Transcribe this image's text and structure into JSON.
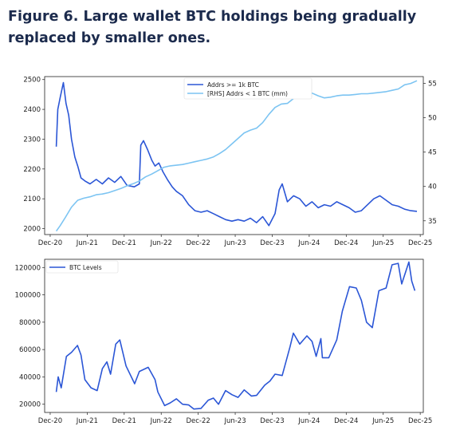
{
  "figure_title": "Figure 6. Large wallet BTC holdings being gradually\nreplaced by smaller ones.",
  "colors": {
    "dark_series": "#2b56d6",
    "light_series": "#7cc4f2",
    "title": "#1c2b4d"
  },
  "chart_data": [
    {
      "type": "line",
      "title": "",
      "x_ticks": [
        "Dec-20",
        "Jun-21",
        "Dec-21",
        "Jun-22",
        "Dec-22",
        "Jun-23",
        "Dec-23",
        "Jun-24",
        "Dec-24",
        "Jun-25",
        "Dec-25"
      ],
      "xlim": [
        "2020-12",
        "2025-12"
      ],
      "ylim": [
        1980,
        2510
      ],
      "y_ticks": [
        2000,
        2100,
        2200,
        2300,
        2400,
        2500
      ],
      "y2lim": [
        33,
        56
      ],
      "y2_ticks": [
        35,
        40,
        45,
        50,
        55
      ],
      "legend_position": "top-center",
      "grid": false,
      "series": [
        {
          "name": "Addrs >= 1k BTC",
          "axis": "left",
          "points": [
            [
              "2020-12-31",
              2275
            ],
            [
              "2021-01-08",
              2400
            ],
            [
              "2021-01-20",
              2440
            ],
            [
              "2021-02-05",
              2490
            ],
            [
              "2021-02-18",
              2420
            ],
            [
              "2021-03-01",
              2380
            ],
            [
              "2021-03-15",
              2300
            ],
            [
              "2021-04-01",
              2240
            ],
            [
              "2021-04-15",
              2210
            ],
            [
              "2021-05-01",
              2170
            ],
            [
              "2021-05-20",
              2160
            ],
            [
              "2021-06-15",
              2150
            ],
            [
              "2021-07-15",
              2165
            ],
            [
              "2021-08-15",
              2150
            ],
            [
              "2021-09-15",
              2170
            ],
            [
              "2021-10-15",
              2155
            ],
            [
              "2021-11-15",
              2175
            ],
            [
              "2021-12-15",
              2145
            ],
            [
              "2022-01-20",
              2140
            ],
            [
              "2022-02-15",
              2150
            ],
            [
              "2022-02-22",
              2280
            ],
            [
              "2022-03-05",
              2295
            ],
            [
              "2022-03-25",
              2265
            ],
            [
              "2022-04-15",
              2230
            ],
            [
              "2022-05-01",
              2210
            ],
            [
              "2022-05-20",
              2220
            ],
            [
              "2022-06-10",
              2190
            ],
            [
              "2022-07-01",
              2165
            ],
            [
              "2022-07-25",
              2140
            ],
            [
              "2022-08-15",
              2125
            ],
            [
              "2022-09-15",
              2110
            ],
            [
              "2022-10-15",
              2080
            ],
            [
              "2022-11-15",
              2060
            ],
            [
              "2022-12-15",
              2055
            ],
            [
              "2023-01-15",
              2060
            ],
            [
              "2023-02-15",
              2050
            ],
            [
              "2023-03-15",
              2040
            ],
            [
              "2023-04-15",
              2030
            ],
            [
              "2023-05-15",
              2025
            ],
            [
              "2023-06-15",
              2030
            ],
            [
              "2023-07-15",
              2025
            ],
            [
              "2023-08-15",
              2035
            ],
            [
              "2023-09-15",
              2020
            ],
            [
              "2023-10-15",
              2040
            ],
            [
              "2023-11-15",
              2010
            ],
            [
              "2023-12-15",
              2050
            ],
            [
              "2024-01-05",
              2130
            ],
            [
              "2024-01-20",
              2150
            ],
            [
              "2024-02-15",
              2090
            ],
            [
              "2024-03-15",
              2110
            ],
            [
              "2024-04-15",
              2100
            ],
            [
              "2024-05-15",
              2075
            ],
            [
              "2024-06-15",
              2090
            ],
            [
              "2024-07-15",
              2070
            ],
            [
              "2024-08-15",
              2080
            ],
            [
              "2024-09-15",
              2075
            ],
            [
              "2024-10-15",
              2090
            ],
            [
              "2024-11-15",
              2080
            ],
            [
              "2024-12-15",
              2070
            ],
            [
              "2025-01-15",
              2055
            ],
            [
              "2025-02-15",
              2060
            ],
            [
              "2025-03-15",
              2080
            ],
            [
              "2025-04-15",
              2100
            ],
            [
              "2025-05-15",
              2110
            ],
            [
              "2025-06-15",
              2095
            ],
            [
              "2025-07-15",
              2080
            ],
            [
              "2025-08-15",
              2075
            ],
            [
              "2025-09-15",
              2065
            ],
            [
              "2025-10-15",
              2060
            ],
            [
              "2025-11-15",
              2058
            ]
          ]
        },
        {
          "name": "[RHS] Addrs < 1 BTC (mm)",
          "axis": "right",
          "points": [
            [
              "2020-12-31",
              33.5
            ],
            [
              "2021-01-20",
              34.3
            ],
            [
              "2021-02-15",
              35.5
            ],
            [
              "2021-03-15",
              37.0
            ],
            [
              "2021-04-15",
              38.0
            ],
            [
              "2021-05-15",
              38.3
            ],
            [
              "2021-06-15",
              38.5
            ],
            [
              "2021-07-15",
              38.8
            ],
            [
              "2021-08-15",
              38.9
            ],
            [
              "2021-09-15",
              39.1
            ],
            [
              "2021-10-15",
              39.4
            ],
            [
              "2021-11-15",
              39.7
            ],
            [
              "2021-12-15",
              40.1
            ],
            [
              "2022-01-15",
              40.4
            ],
            [
              "2022-02-15",
              40.8
            ],
            [
              "2022-03-15",
              41.4
            ],
            [
              "2022-04-15",
              41.8
            ],
            [
              "2022-05-15",
              42.3
            ],
            [
              "2022-06-15",
              42.8
            ],
            [
              "2022-07-15",
              43.0
            ],
            [
              "2022-08-15",
              43.1
            ],
            [
              "2022-09-15",
              43.2
            ],
            [
              "2022-10-15",
              43.4
            ],
            [
              "2022-11-15",
              43.6
            ],
            [
              "2022-12-15",
              43.8
            ],
            [
              "2023-01-15",
              44.0
            ],
            [
              "2023-02-15",
              44.3
            ],
            [
              "2023-03-15",
              44.8
            ],
            [
              "2023-04-15",
              45.4
            ],
            [
              "2023-05-15",
              46.2
            ],
            [
              "2023-06-15",
              47.0
            ],
            [
              "2023-07-15",
              47.8
            ],
            [
              "2023-08-15",
              48.2
            ],
            [
              "2023-09-15",
              48.5
            ],
            [
              "2023-10-15",
              49.3
            ],
            [
              "2023-11-15",
              50.5
            ],
            [
              "2023-12-15",
              51.5
            ],
            [
              "2024-01-15",
              52.0
            ],
            [
              "2024-02-15",
              52.1
            ],
            [
              "2024-03-15",
              52.8
            ],
            [
              "2024-04-15",
              53.2
            ],
            [
              "2024-05-15",
              53.5
            ],
            [
              "2024-06-15",
              53.6
            ],
            [
              "2024-07-15",
              53.2
            ],
            [
              "2024-08-15",
              52.9
            ],
            [
              "2024-09-15",
              53.0
            ],
            [
              "2024-10-15",
              53.2
            ],
            [
              "2024-11-15",
              53.3
            ],
            [
              "2024-12-15",
              53.3
            ],
            [
              "2025-01-15",
              53.4
            ],
            [
              "2025-02-15",
              53.5
            ],
            [
              "2025-03-15",
              53.5
            ],
            [
              "2025-04-15",
              53.6
            ],
            [
              "2025-05-15",
              53.7
            ],
            [
              "2025-06-15",
              53.8
            ],
            [
              "2025-07-15",
              54.0
            ],
            [
              "2025-08-15",
              54.2
            ],
            [
              "2025-09-15",
              54.8
            ],
            [
              "2025-10-15",
              55.0
            ],
            [
              "2025-11-15",
              55.4
            ]
          ]
        }
      ]
    },
    {
      "type": "line",
      "title": "",
      "x_ticks": [
        "Dec-20",
        "Jun-21",
        "Dec-21",
        "Jun-22",
        "Dec-22",
        "Jun-23",
        "Dec-23",
        "Jun-24",
        "Dec-24",
        "Jun-25",
        "Dec-25"
      ],
      "xlim": [
        "2020-12",
        "2025-12"
      ],
      "ylim": [
        14000,
        126000
      ],
      "y_ticks": [
        20000,
        40000,
        60000,
        80000,
        100000,
        120000
      ],
      "legend_position": "top-left",
      "grid": false,
      "series": [
        {
          "name": "BTC Levels",
          "axis": "left",
          "points": [
            [
              "2020-12-31",
              29000
            ],
            [
              "2021-01-10",
              40000
            ],
            [
              "2021-01-25",
              32000
            ],
            [
              "2021-02-20",
              55000
            ],
            [
              "2021-03-15",
              58000
            ],
            [
              "2021-04-14",
              63000
            ],
            [
              "2021-05-01",
              56000
            ],
            [
              "2021-05-20",
              38000
            ],
            [
              "2021-06-20",
              32000
            ],
            [
              "2021-07-20",
              30000
            ],
            [
              "2021-08-15",
              46000
            ],
            [
              "2021-09-07",
              51000
            ],
            [
              "2021-09-25",
              42000
            ],
            [
              "2021-10-20",
              64000
            ],
            [
              "2021-11-10",
              67000
            ],
            [
              "2021-12-10",
              48000
            ],
            [
              "2022-01-22",
              35000
            ],
            [
              "2022-02-15",
              44000
            ],
            [
              "2022-03-28",
              47000
            ],
            [
              "2022-05-01",
              38000
            ],
            [
              "2022-05-15",
              29000
            ],
            [
              "2022-06-18",
              19000
            ],
            [
              "2022-07-15",
              21000
            ],
            [
              "2022-08-15",
              24000
            ],
            [
              "2022-09-15",
              20000
            ],
            [
              "2022-10-15",
              19500
            ],
            [
              "2022-11-10",
              16500
            ],
            [
              "2022-12-15",
              17000
            ],
            [
              "2023-01-20",
              23000
            ],
            [
              "2023-02-15",
              24500
            ],
            [
              "2023-03-10",
              20000
            ],
            [
              "2023-04-14",
              30000
            ],
            [
              "2023-05-15",
              27000
            ],
            [
              "2023-06-15",
              25000
            ],
            [
              "2023-07-15",
              30500
            ],
            [
              "2023-08-20",
              26000
            ],
            [
              "2023-09-15",
              26500
            ],
            [
              "2023-10-25",
              34000
            ],
            [
              "2023-11-20",
              37000
            ],
            [
              "2023-12-15",
              42000
            ],
            [
              "2024-01-20",
              41000
            ],
            [
              "2024-02-28",
              62000
            ],
            [
              "2024-03-14",
              72000
            ],
            [
              "2024-04-15",
              64000
            ],
            [
              "2024-05-20",
              70000
            ],
            [
              "2024-06-15",
              66000
            ],
            [
              "2024-07-05",
              55000
            ],
            [
              "2024-07-28",
              68000
            ],
            [
              "2024-08-05",
              54000
            ],
            [
              "2024-09-06",
              54000
            ],
            [
              "2024-10-15",
              67000
            ],
            [
              "2024-11-12",
              88000
            ],
            [
              "2024-12-17",
              106000
            ],
            [
              "2025-01-20",
              105000
            ],
            [
              "2025-02-15",
              96000
            ],
            [
              "2025-03-10",
              80000
            ],
            [
              "2025-04-08",
              76000
            ],
            [
              "2025-05-10",
              103000
            ],
            [
              "2025-06-15",
              105000
            ],
            [
              "2025-07-14",
              122000
            ],
            [
              "2025-08-14",
              123000
            ],
            [
              "2025-09-01",
              108000
            ],
            [
              "2025-10-06",
              124000
            ],
            [
              "2025-10-20",
              110000
            ],
            [
              "2025-11-05",
              103000
            ]
          ]
        }
      ]
    }
  ]
}
